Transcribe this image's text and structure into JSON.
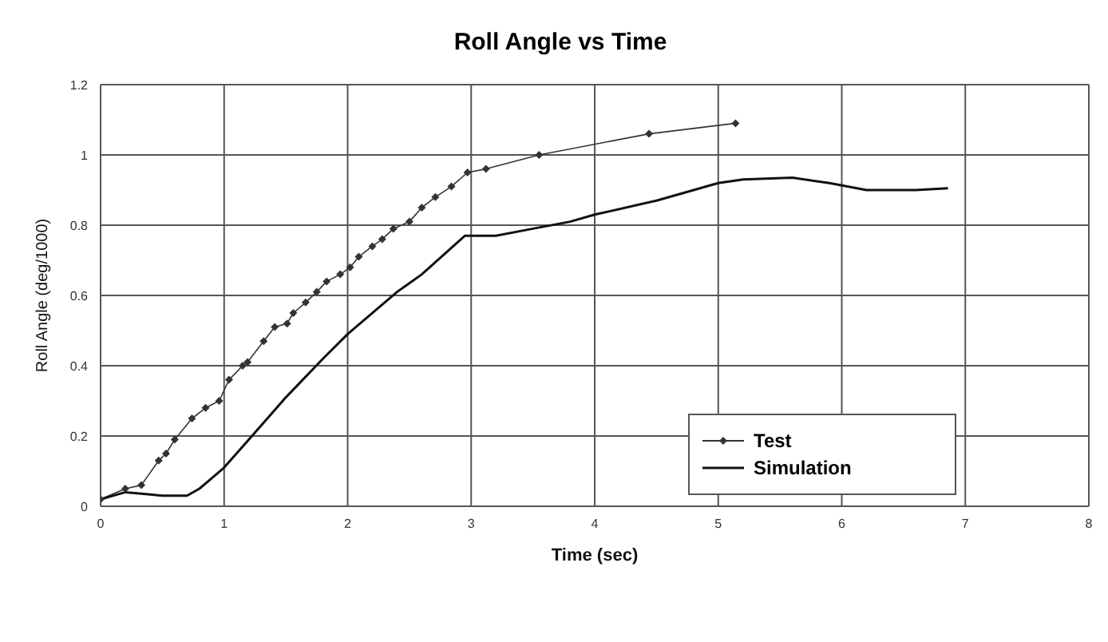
{
  "chart_data": {
    "type": "line",
    "title": "Roll Angle vs Time",
    "xlabel": "Time (sec)",
    "ylabel": "Roll Angle (deg/1000)",
    "xlim": [
      0,
      8
    ],
    "xticks": [
      0,
      1,
      2,
      3,
      4,
      5,
      6,
      7,
      8
    ],
    "ylim": [
      0,
      1.2
    ],
    "yticks": [
      0,
      0.2,
      0.4,
      0.6,
      0.8,
      1,
      1.2
    ],
    "grid": true,
    "legend": "bottom right",
    "series": [
      {
        "name": "Test",
        "color": "#333333",
        "marker": "diamond",
        "x": [
          0,
          0.2,
          0.33,
          0.47,
          0.53,
          0.6,
          0.74,
          0.85,
          0.96,
          1.04,
          1.15,
          1.19,
          1.32,
          1.41,
          1.51,
          1.56,
          1.66,
          1.75,
          1.83,
          1.94,
          2.02,
          2.09,
          2.2,
          2.28,
          2.37,
          2.5,
          2.6,
          2.71,
          2.84,
          2.97,
          3.12,
          3.55,
          4.44,
          5.14
        ],
        "values": [
          0.02,
          0.05,
          0.06,
          0.13,
          0.15,
          0.19,
          0.25,
          0.28,
          0.3,
          0.36,
          0.4,
          0.41,
          0.47,
          0.51,
          0.52,
          0.55,
          0.58,
          0.61,
          0.64,
          0.66,
          0.68,
          0.71,
          0.74,
          0.76,
          0.79,
          0.81,
          0.85,
          0.88,
          0.91,
          0.95,
          0.96,
          1.0,
          1.06,
          1.09
        ]
      },
      {
        "name": "Simulation",
        "color": "#111111",
        "marker": "none",
        "x": [
          0,
          0.2,
          0.35,
          0.5,
          0.7,
          0.8,
          1.0,
          1.2,
          1.5,
          1.8,
          2.0,
          2.4,
          2.6,
          2.95,
          3.2,
          3.5,
          3.8,
          4.0,
          4.5,
          5.0,
          5.2,
          5.6,
          5.9,
          6.2,
          6.6,
          6.86
        ],
        "values": [
          0.02,
          0.04,
          0.035,
          0.03,
          0.03,
          0.05,
          0.11,
          0.19,
          0.31,
          0.42,
          0.49,
          0.61,
          0.66,
          0.77,
          0.77,
          0.79,
          0.81,
          0.83,
          0.87,
          0.92,
          0.93,
          0.935,
          0.92,
          0.9,
          0.9,
          0.905
        ]
      }
    ]
  }
}
